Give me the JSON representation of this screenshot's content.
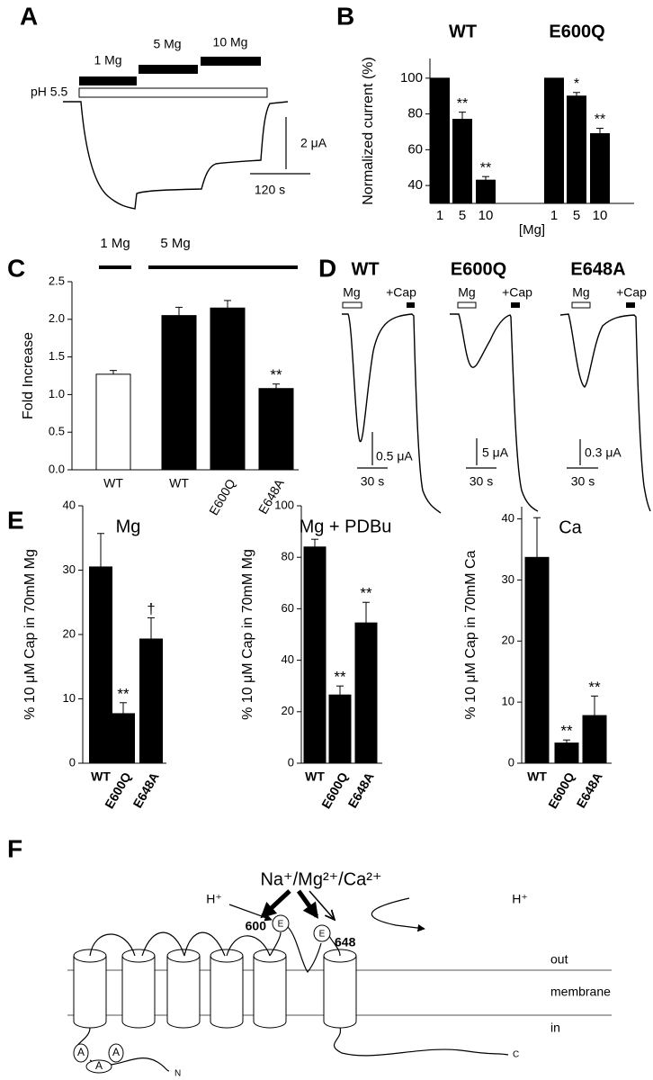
{
  "panel_labels": [
    "A",
    "B",
    "C",
    "D",
    "E",
    "F"
  ],
  "panel_a": {
    "treatments": [
      "1 Mg",
      "5 Mg",
      "10 Mg"
    ],
    "ph_label": "pH 5.5",
    "scale_y": "2 μA",
    "scale_x": "120 s"
  },
  "chart_data": [
    {
      "type": "bar",
      "ylabel": "Normalized current (%)",
      "xlabel": "[Mg]",
      "color": "#000000",
      "groups": [
        {
          "name": "WT",
          "categories": [
            "1",
            "5",
            "10"
          ],
          "values": [
            100,
            77,
            43
          ],
          "errors": [
            null,
            4,
            2
          ],
          "annotations": [
            null,
            "**",
            "**"
          ]
        },
        {
          "name": "E600Q",
          "categories": [
            "1",
            "5",
            "10"
          ],
          "values": [
            100,
            90,
            69
          ],
          "errors": [
            null,
            2,
            3
          ],
          "annotations": [
            null,
            "*",
            "**"
          ]
        }
      ],
      "ylim": [
        30,
        111
      ],
      "yticks": [
        40,
        60,
        80,
        100
      ]
    },
    {
      "type": "bar",
      "ylabel": "Fold Increase",
      "conditions": [
        "1 Mg",
        "5 Mg"
      ],
      "categories": [
        "WT",
        "WT",
        "E600Q",
        "E648A"
      ],
      "values": [
        1.27,
        2.05,
        2.15,
        1.08
      ],
      "errors": [
        0.05,
        0.11,
        0.1,
        0.06
      ],
      "annotations": [
        null,
        null,
        null,
        "**"
      ],
      "colors": [
        "#ffffff",
        "#000000",
        "#000000",
        "#000000"
      ],
      "ylim": [
        0,
        2.5
      ],
      "yticks": [
        {
          "value": 0,
          "label": "0.0"
        },
        0.5,
        {
          "value": 1,
          "label": "1.0"
        },
        1.5,
        {
          "value": 2,
          "label": "2.0"
        },
        2.5
      ]
    },
    {
      "type": "bar",
      "title": "Mg",
      "ylabel": "% 10 μM Cap in 70mM Mg",
      "color": "#000000",
      "categories": [
        "WT",
        "E600Q",
        "E648A"
      ],
      "values": [
        30.5,
        7.7,
        19.3
      ],
      "errors": [
        5.2,
        1.7,
        3.3
      ],
      "annotations": [
        null,
        "**",
        "†"
      ],
      "ylim": [
        0,
        40
      ],
      "yticks": [
        0,
        10,
        20,
        30,
        40
      ]
    },
    {
      "type": "bar",
      "title": "Mg + PDBu",
      "ylabel": "% 10 μM Cap in 70mM Mg",
      "color": "#000000",
      "categories": [
        "WT",
        "E600Q",
        "E648A"
      ],
      "values": [
        84,
        26.5,
        54.5
      ],
      "errors": [
        3,
        3.5,
        8
      ],
      "annotations": [
        null,
        "**",
        "**"
      ],
      "ylim": [
        0,
        100
      ],
      "yticks": [
        0,
        20,
        40,
        60,
        80,
        100
      ]
    },
    {
      "type": "bar",
      "title": "Ca",
      "ylabel": "% 10 μM Cap in 70mM Ca",
      "color": "#000000",
      "categories": [
        "WT",
        "E600Q",
        "E648A"
      ],
      "values": [
        33.7,
        3.3,
        7.8
      ],
      "errors": [
        6.5,
        0.5,
        3.2
      ],
      "annotations": [
        null,
        "**",
        "**"
      ],
      "ylim": [
        0,
        42
      ],
      "yticks": [
        0,
        10,
        20,
        30,
        40
      ]
    }
  ],
  "panel_d": {
    "agonist": "Mg",
    "capsaicin": "+Cap",
    "traces": [
      {
        "title": "WT",
        "scale_y": "0.5 μA",
        "scale_x": "30 s"
      },
      {
        "title": "E600Q",
        "scale_y": "5 μA",
        "scale_x": "30 s"
      },
      {
        "title": "E648A",
        "scale_y": "0.3 μA",
        "scale_x": "30 s"
      }
    ]
  },
  "panel_f": {
    "ions": "Na⁺/Mg²⁺/Ca²⁺",
    "proton": "H⁺",
    "residue_1": "600",
    "residue_2": "648",
    "glutamate": "E",
    "out": "out",
    "membrane": "membrane",
    "in": "in",
    "ankyrin": "A",
    "n_term": "N",
    "c_term": "C"
  }
}
